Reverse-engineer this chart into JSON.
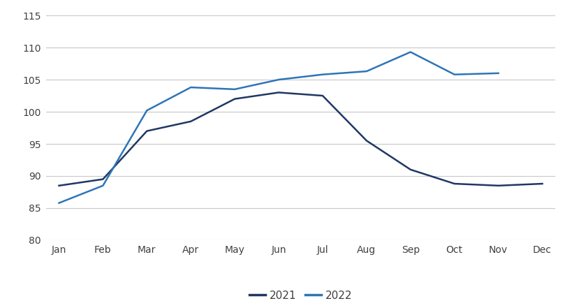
{
  "months": [
    "Jan",
    "Feb",
    "Mar",
    "Apr",
    "May",
    "Jun",
    "Jul",
    "Aug",
    "Sep",
    "Oct",
    "Nov",
    "Dec"
  ],
  "series_2021": [
    88.5,
    89.5,
    97.0,
    98.5,
    102.0,
    103.0,
    102.5,
    95.5,
    91.0,
    88.8,
    88.5,
    88.8
  ],
  "series_2022": [
    85.8,
    88.5,
    100.2,
    103.8,
    103.5,
    105.0,
    105.8,
    106.3,
    109.3,
    105.8,
    106.0,
    null
  ],
  "color_2021": "#1f3864",
  "color_2022": "#2e75b6",
  "ylim_min": 80,
  "ylim_max": 115,
  "yticks": [
    80,
    85,
    90,
    95,
    100,
    105,
    110,
    115
  ],
  "legend_labels": [
    "2021",
    "2022"
  ],
  "line_width": 1.8,
  "background_color": "#ffffff",
  "grid_color": "#c8c8c8",
  "tick_color": "#404040",
  "tick_fontsize": 10,
  "legend_fontsize": 11
}
